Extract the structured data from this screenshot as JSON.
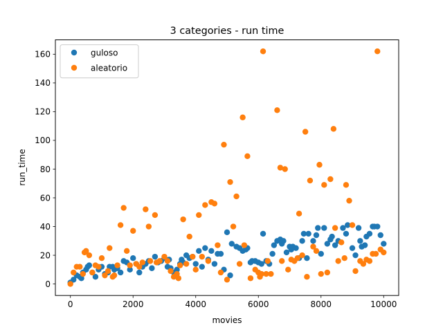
{
  "chart_data": {
    "type": "scatter",
    "title": "3 categories - run time",
    "xlabel": "movies",
    "ylabel": "run_time",
    "xlim": [
      -480,
      10480
    ],
    "ylim": [
      -8,
      170
    ],
    "x_ticks": [
      0,
      2000,
      4000,
      6000,
      8000,
      10000
    ],
    "y_ticks": [
      0,
      20,
      40,
      60,
      80,
      100,
      120,
      140,
      160
    ],
    "legend_position": "upper-left",
    "grid": false,
    "series": [
      {
        "name": "guloso",
        "color": "#1f77b4",
        "points": [
          [
            0,
            1
          ],
          [
            100,
            3
          ],
          [
            200,
            6
          ],
          [
            300,
            5
          ],
          [
            350,
            4
          ],
          [
            400,
            8
          ],
          [
            500,
            10
          ],
          [
            550,
            12
          ],
          [
            600,
            13
          ],
          [
            700,
            8
          ],
          [
            800,
            5
          ],
          [
            900,
            10
          ],
          [
            1000,
            12
          ],
          [
            1100,
            7
          ],
          [
            1200,
            8
          ],
          [
            1250,
            12
          ],
          [
            1350,
            12
          ],
          [
            1400,
            10
          ],
          [
            1500,
            11
          ],
          [
            1600,
            8
          ],
          [
            1700,
            16
          ],
          [
            1800,
            15
          ],
          [
            1900,
            10
          ],
          [
            2000,
            18
          ],
          [
            2100,
            14
          ],
          [
            2200,
            8
          ],
          [
            2300,
            12
          ],
          [
            2400,
            14
          ],
          [
            2500,
            16
          ],
          [
            2600,
            11
          ],
          [
            2700,
            19
          ],
          [
            2800,
            15
          ],
          [
            2900,
            16
          ],
          [
            3000,
            18
          ],
          [
            3100,
            12
          ],
          [
            3150,
            17
          ],
          [
            3200,
            11
          ],
          [
            3300,
            8
          ],
          [
            3400,
            10
          ],
          [
            3500,
            14
          ],
          [
            3550,
            17
          ],
          [
            3600,
            15
          ],
          [
            3700,
            20
          ],
          [
            3800,
            18
          ],
          [
            3900,
            19
          ],
          [
            4000,
            14
          ],
          [
            4100,
            23
          ],
          [
            4200,
            12
          ],
          [
            4300,
            25
          ],
          [
            4400,
            17
          ],
          [
            4500,
            23
          ],
          [
            4600,
            14
          ],
          [
            4700,
            21
          ],
          [
            4800,
            21
          ],
          [
            4900,
            10
          ],
          [
            5000,
            36
          ],
          [
            5100,
            6
          ],
          [
            5150,
            28
          ],
          [
            5300,
            26
          ],
          [
            5400,
            25
          ],
          [
            5500,
            23
          ],
          [
            5600,
            24
          ],
          [
            5650,
            25
          ],
          [
            5750,
            15
          ],
          [
            5800,
            16
          ],
          [
            5900,
            16
          ],
          [
            6000,
            15
          ],
          [
            6100,
            14
          ],
          [
            6150,
            35
          ],
          [
            6250,
            16
          ],
          [
            6350,
            14
          ],
          [
            6450,
            21
          ],
          [
            6500,
            27
          ],
          [
            6600,
            30
          ],
          [
            6700,
            31
          ],
          [
            6750,
            28
          ],
          [
            6800,
            30
          ],
          [
            6900,
            22
          ],
          [
            7000,
            26
          ],
          [
            7050,
            24
          ],
          [
            7100,
            26
          ],
          [
            7200,
            25
          ],
          [
            7300,
            18
          ],
          [
            7400,
            30
          ],
          [
            7450,
            35
          ],
          [
            7550,
            18
          ],
          [
            7600,
            35
          ],
          [
            7750,
            30
          ],
          [
            7850,
            34
          ],
          [
            7900,
            39
          ],
          [
            8000,
            21
          ],
          [
            8100,
            39
          ],
          [
            8200,
            28
          ],
          [
            8300,
            31
          ],
          [
            8350,
            33
          ],
          [
            8450,
            27
          ],
          [
            8550,
            30
          ],
          [
            8700,
            39
          ],
          [
            8800,
            35
          ],
          [
            8850,
            41
          ],
          [
            9000,
            25
          ],
          [
            9100,
            20
          ],
          [
            9200,
            39
          ],
          [
            9250,
            30
          ],
          [
            9300,
            26
          ],
          [
            9400,
            27
          ],
          [
            9450,
            33
          ],
          [
            9550,
            35
          ],
          [
            9650,
            40
          ],
          [
            9700,
            40
          ],
          [
            9800,
            40
          ],
          [
            9900,
            34
          ],
          [
            10000,
            28
          ]
        ]
      },
      {
        "name": "aleatorio",
        "color": "#ff7f0e",
        "points": [
          [
            0,
            0
          ],
          [
            100,
            8
          ],
          [
            200,
            12
          ],
          [
            300,
            12
          ],
          [
            400,
            7
          ],
          [
            450,
            22
          ],
          [
            500,
            23
          ],
          [
            600,
            20
          ],
          [
            700,
            8
          ],
          [
            800,
            13
          ],
          [
            900,
            12
          ],
          [
            1000,
            18
          ],
          [
            1100,
            6
          ],
          [
            1200,
            9
          ],
          [
            1250,
            25
          ],
          [
            1350,
            5
          ],
          [
            1400,
            6
          ],
          [
            1500,
            13
          ],
          [
            1600,
            41
          ],
          [
            1700,
            53
          ],
          [
            1800,
            23
          ],
          [
            1900,
            13
          ],
          [
            2000,
            37
          ],
          [
            2100,
            14
          ],
          [
            2200,
            12
          ],
          [
            2300,
            15
          ],
          [
            2400,
            52
          ],
          [
            2500,
            40
          ],
          [
            2550,
            16
          ],
          [
            2700,
            48
          ],
          [
            2750,
            15
          ],
          [
            2850,
            16
          ],
          [
            3000,
            19
          ],
          [
            3100,
            16
          ],
          [
            3200,
            9
          ],
          [
            3300,
            5
          ],
          [
            3400,
            7
          ],
          [
            3450,
            4
          ],
          [
            3500,
            13
          ],
          [
            3600,
            45
          ],
          [
            3700,
            14
          ],
          [
            3800,
            33
          ],
          [
            3900,
            19
          ],
          [
            4000,
            10
          ],
          [
            4100,
            48
          ],
          [
            4200,
            19
          ],
          [
            4300,
            55
          ],
          [
            4400,
            16
          ],
          [
            4500,
            57
          ],
          [
            4600,
            56
          ],
          [
            4700,
            27
          ],
          [
            4800,
            8
          ],
          [
            4900,
            97
          ],
          [
            5000,
            3
          ],
          [
            5100,
            71
          ],
          [
            5200,
            40
          ],
          [
            5300,
            61
          ],
          [
            5400,
            14
          ],
          [
            5500,
            116
          ],
          [
            5550,
            27
          ],
          [
            5650,
            89
          ],
          [
            5750,
            4
          ],
          [
            5900,
            10
          ],
          [
            6000,
            8
          ],
          [
            6050,
            5
          ],
          [
            6100,
            7
          ],
          [
            6150,
            162
          ],
          [
            6250,
            7
          ],
          [
            6300,
            16
          ],
          [
            6400,
            7
          ],
          [
            6600,
            121
          ],
          [
            6700,
            81
          ],
          [
            6750,
            16
          ],
          [
            6850,
            80
          ],
          [
            6950,
            10
          ],
          [
            7050,
            17
          ],
          [
            7150,
            16
          ],
          [
            7250,
            18
          ],
          [
            7300,
            49
          ],
          [
            7400,
            20
          ],
          [
            7500,
            106
          ],
          [
            7550,
            5
          ],
          [
            7650,
            72
          ],
          [
            7750,
            26
          ],
          [
            7850,
            23
          ],
          [
            7950,
            83
          ],
          [
            8000,
            7
          ],
          [
            8100,
            69
          ],
          [
            8200,
            8
          ],
          [
            8300,
            73
          ],
          [
            8400,
            108
          ],
          [
            8450,
            39
          ],
          [
            8550,
            16
          ],
          [
            8650,
            29
          ],
          [
            8750,
            18
          ],
          [
            8800,
            69
          ],
          [
            8900,
            58
          ],
          [
            9000,
            41
          ],
          [
            9100,
            9
          ],
          [
            9250,
            16
          ],
          [
            9350,
            14
          ],
          [
            9450,
            17
          ],
          [
            9550,
            16
          ],
          [
            9650,
            21
          ],
          [
            9750,
            21
          ],
          [
            9800,
            162
          ],
          [
            9900,
            24
          ],
          [
            10000,
            22
          ]
        ]
      }
    ]
  }
}
